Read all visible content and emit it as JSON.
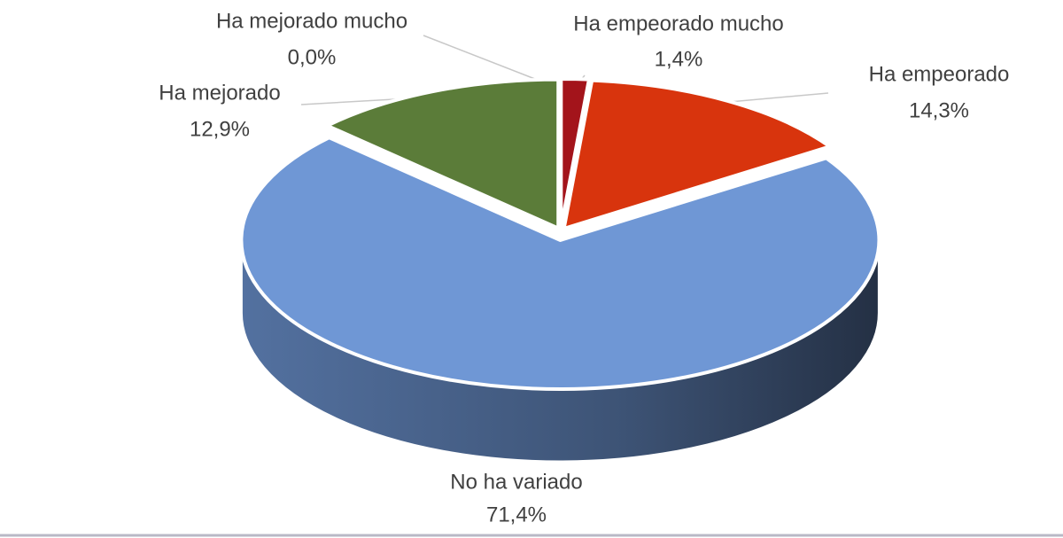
{
  "chart_data": {
    "type": "pie",
    "categories": [
      "Ha empeorado mucho",
      "Ha empeorado",
      "No ha variado",
      "Ha mejorado",
      "Ha mejorado mucho"
    ],
    "values": [
      1.4,
      14.3,
      71.4,
      12.9,
      0.0
    ],
    "value_labels": [
      "1,4%",
      "14,3%",
      "71,4%",
      "12,9%",
      "0,0%"
    ],
    "colors": [
      "#a3141b",
      "#d8340d",
      "#6f97d5",
      "#5b7c39",
      "#8aa55a"
    ]
  }
}
